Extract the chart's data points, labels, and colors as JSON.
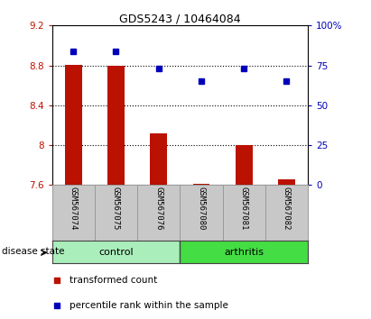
{
  "title": "GDS5243 / 10464084",
  "samples": [
    "GSM567074",
    "GSM567075",
    "GSM567076",
    "GSM567080",
    "GSM567081",
    "GSM567082"
  ],
  "red_values": [
    8.807,
    8.793,
    8.12,
    7.615,
    8.005,
    7.655
  ],
  "blue_values": [
    84,
    84,
    73,
    65,
    73,
    65
  ],
  "ylim_left": [
    7.6,
    9.2
  ],
  "ylim_right": [
    0,
    100
  ],
  "yticks_left": [
    7.6,
    8.0,
    8.4,
    8.8,
    9.2
  ],
  "yticks_right": [
    0,
    25,
    50,
    75,
    100
  ],
  "ytick_labels_left": [
    "7.6",
    "8",
    "8.4",
    "8.8",
    "9.2"
  ],
  "ytick_labels_right": [
    "0",
    "25",
    "50",
    "75",
    "100%"
  ],
  "bar_bottom": 7.6,
  "bar_color": "#bb1100",
  "dot_color": "#0000bb",
  "groups": [
    {
      "label": "control",
      "indices": [
        0,
        1,
        2
      ],
      "color": "#aaeebb"
    },
    {
      "label": "arthritis",
      "indices": [
        3,
        4,
        5
      ],
      "color": "#44dd44"
    }
  ],
  "group_label": "disease state",
  "legend_items": [
    {
      "label": "transformed count",
      "color": "#bb1100"
    },
    {
      "label": "percentile rank within the sample",
      "color": "#0000bb"
    }
  ],
  "grid_color": "#000000",
  "grid_yticks": [
    8.0,
    8.4,
    8.8
  ],
  "label_area_bg": "#c8c8c8"
}
